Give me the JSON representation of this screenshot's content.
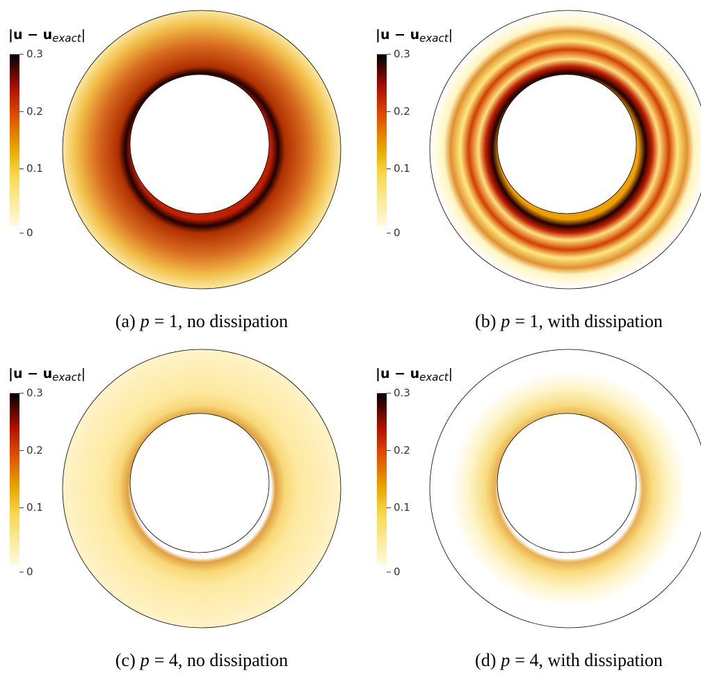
{
  "colorbar": {
    "label_main": "|u − u",
    "label_sub": "exact",
    "label_close": "|",
    "lim": [
      0,
      0.3
    ],
    "ticks": [
      0,
      0.1,
      0.2,
      0.3
    ]
  },
  "panels": [
    {
      "prefix": "(a)",
      "var": "p",
      "rest": "= 1, no dissipation"
    },
    {
      "prefix": "(b)",
      "var": "p",
      "rest": "= 1, with dissipation"
    },
    {
      "prefix": "(c)",
      "var": "p",
      "rest": "= 4, no dissipation"
    },
    {
      "prefix": "(d)",
      "var": "p",
      "rest": "= 4, with dissipation"
    }
  ]
}
